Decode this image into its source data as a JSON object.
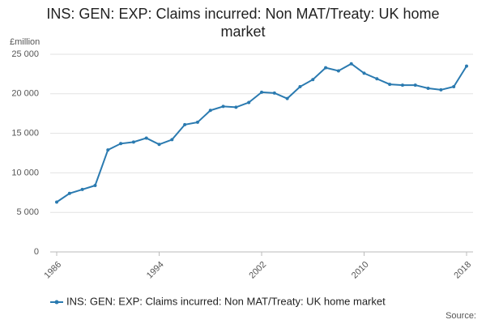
{
  "chart_data": {
    "type": "line",
    "title": "INS: GEN: EXP: Claims incurred: Non MAT/Treaty: UK home market",
    "y_label": "£million",
    "source": "Source:",
    "legend": "bottom",
    "grid": true,
    "x": [
      1986,
      1987,
      1988,
      1989,
      1990,
      1991,
      1992,
      1993,
      1994,
      1995,
      1996,
      1997,
      1998,
      1999,
      2000,
      2001,
      2002,
      2003,
      2004,
      2005,
      2006,
      2007,
      2008,
      2009,
      2010,
      2011,
      2012,
      2013,
      2014,
      2015,
      2016,
      2017,
      2018
    ],
    "series": [
      {
        "name": "INS: GEN: EXP: Claims incurred: Non MAT/Treaty: UK home market",
        "color": "#2a7ab0",
        "values": [
          6300,
          7400,
          7900,
          8400,
          12900,
          13700,
          13900,
          14400,
          13600,
          14200,
          16100,
          16400,
          17900,
          18400,
          18300,
          18900,
          20200,
          20100,
          19400,
          20900,
          21800,
          23300,
          22900,
          23800,
          22600,
          21900,
          21200,
          21100,
          21100,
          20700,
          20500,
          20900,
          23500
        ]
      }
    ],
    "xlim": [
      1986,
      2018
    ],
    "xticks": [
      1986,
      1994,
      2002,
      2010,
      2018
    ],
    "ylim": [
      0,
      25000
    ],
    "yticks": [
      0,
      {
        "value": 5000,
        "label": "5 000"
      },
      {
        "value": 10000,
        "label": "10 000"
      },
      {
        "value": 15000,
        "label": "15 000"
      },
      {
        "value": 20000,
        "label": "20 000"
      },
      {
        "value": 25000,
        "label": "25 000"
      }
    ]
  }
}
